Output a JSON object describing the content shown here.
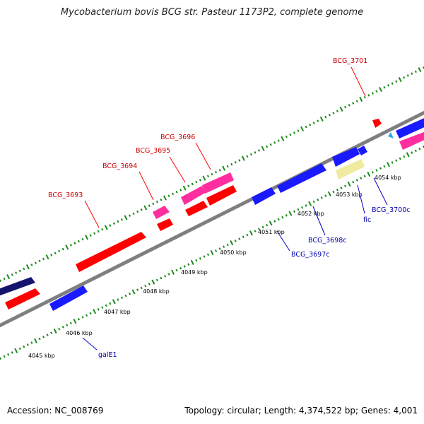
{
  "title": "Mycobacterium bovis BCG str. Pasteur 1173P2, complete genome",
  "footer": {
    "accession": "Accession: NC_008769",
    "summary": "Topology: circular; Length: 4,374,522 bp; Genes: 4,001"
  },
  "colors": {
    "backbone": "#7f7f7f",
    "ticks": "#1a8a1a",
    "red": "#ff0000",
    "pink": "#ff2ea0",
    "blue": "#1a1aff",
    "navy": "#14146e",
    "pale": "#f0eba0",
    "cyan": "#2aa6e6",
    "label_red": "#cc0000",
    "label_blue": "#0000aa"
  },
  "scale_labels": [
    "4045 kbp",
    "4046 kbp",
    "4047 kbp",
    "4048 kbp",
    "4049 kbp",
    "4050 kbp",
    "4051 kbp",
    "4052 kbp",
    "4053 kbp",
    "4054 kbp"
  ],
  "gene_labels": {
    "top": [
      "BCG_3693",
      "BCG_3694",
      "BCG_3695",
      "BCG_3696",
      "BCG_3701"
    ],
    "bottom": [
      "galE1",
      "BCG_3697c",
      "BCG_3698c",
      "fic",
      "BCG_3700c"
    ]
  }
}
